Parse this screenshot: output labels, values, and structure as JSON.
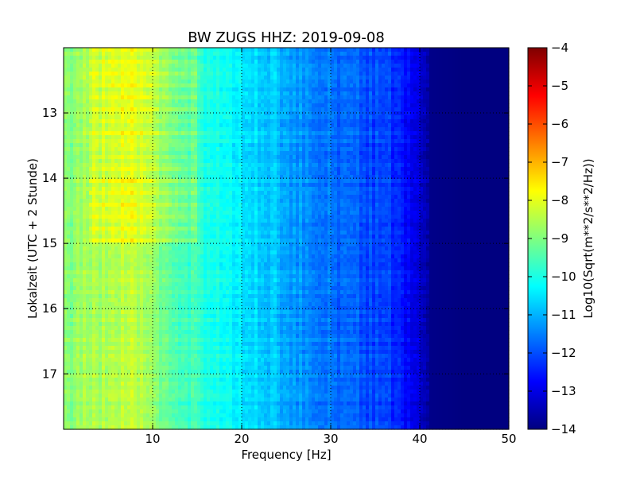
{
  "chart_data": {
    "type": "heatmap",
    "title": "BW ZUGS HHZ: 2019-09-08",
    "xlabel": "Frequency [Hz]",
    "ylabel": "Lokalzeit (UTC + 2 Stunde)",
    "xlim": [
      0,
      50
    ],
    "ylim": [
      17.85,
      12.0
    ],
    "x_ticks": [
      10,
      20,
      30,
      40,
      50
    ],
    "y_ticks": [
      13,
      14,
      15,
      16,
      17
    ],
    "grid": true,
    "colormap": "jet",
    "colorbar": {
      "label": "Log10(Sqrt(m**2/s**2/Hz))",
      "range": [
        -14,
        -4
      ],
      "ticks": [
        -4,
        -5,
        -6,
        -7,
        -8,
        -9,
        -10,
        -11,
        -12,
        -13,
        -14
      ]
    },
    "frequency_profile": {
      "frequency_hz": [
        0,
        2,
        5,
        8,
        10,
        12,
        15,
        18,
        20,
        22,
        24,
        25,
        28,
        30,
        33,
        35,
        37,
        38,
        39,
        40,
        40.6,
        41,
        45,
        50
      ],
      "log10_asd": [
        -9.0,
        -8.7,
        -8.6,
        -8.4,
        -8.9,
        -9.2,
        -9.8,
        -10.2,
        -10.4,
        -10.7,
        -10.9,
        -11.1,
        -11.4,
        -11.6,
        -11.9,
        -12.1,
        -12.3,
        -12.5,
        -12.7,
        -13.0,
        -13.4,
        -13.9,
        -14.0,
        -14.0
      ]
    },
    "elevated_daytime_band": {
      "time_from": 12.0,
      "time_to": 15.0,
      "frequency_hz": [
        3,
        15
      ],
      "log10_asd_increase": 0.6
    }
  }
}
